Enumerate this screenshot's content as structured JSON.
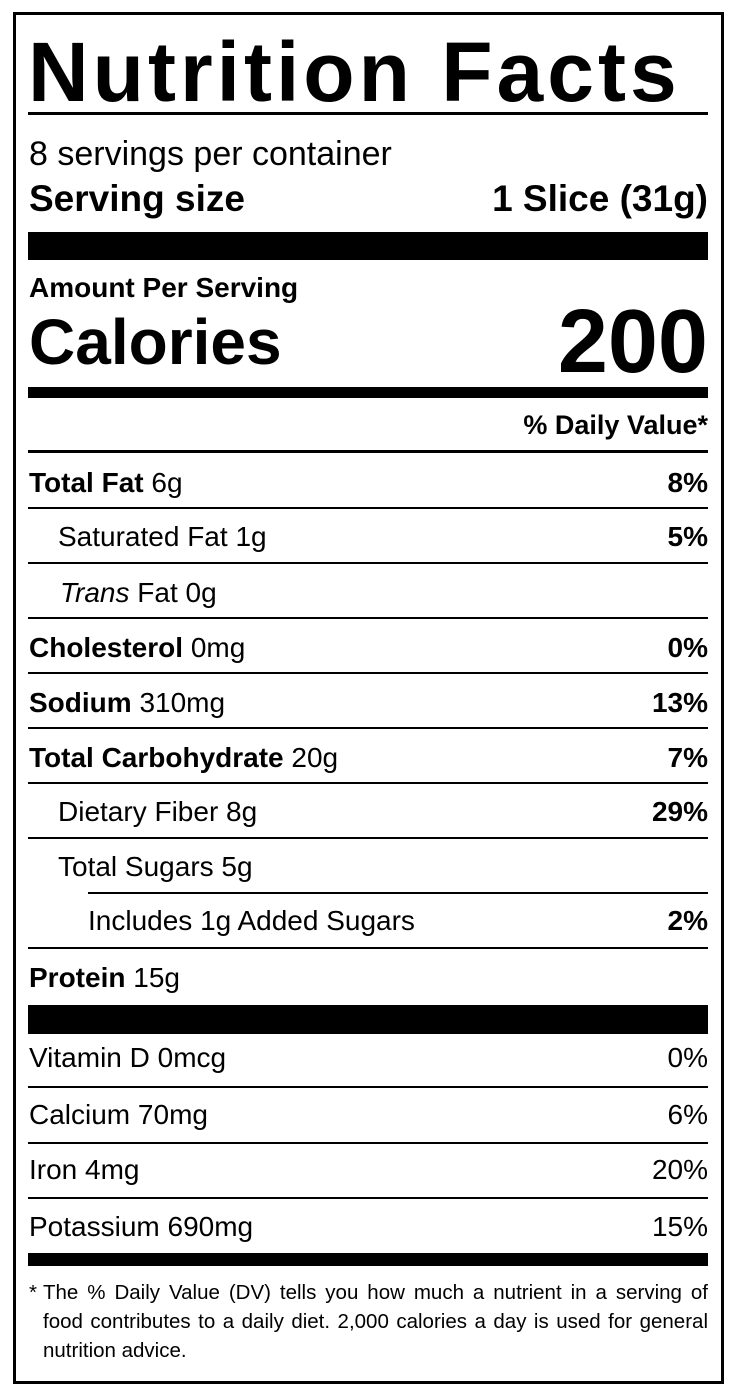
{
  "title": "Nutrition Facts",
  "servings_per_container": "8 servings per container",
  "serving_size": {
    "label": "Serving size",
    "value": "1 Slice (31g)"
  },
  "amount_per_serving": "Amount Per Serving",
  "calories": {
    "label": "Calories",
    "value": "200"
  },
  "daily_value_header": "% Daily Value*",
  "nutrients": [
    {
      "name": "Total Fat",
      "amount": "6g",
      "dv": "8%"
    },
    {
      "name": "Saturated Fat",
      "amount": "1g",
      "dv": "5%"
    },
    {
      "name_italic": "Trans",
      "name": "Fat",
      "amount": "0g",
      "dv": ""
    },
    {
      "name": "Cholesterol",
      "amount": "0mg",
      "dv": "0%"
    },
    {
      "name": "Sodium",
      "amount": "310mg",
      "dv": "13%"
    },
    {
      "name": "Total Carbohydrate",
      "amount": "20g",
      "dv": "7%"
    },
    {
      "name": "Dietary Fiber",
      "amount": "8g",
      "dv": "29%"
    },
    {
      "name": "Total Sugars",
      "amount": "5g",
      "dv": ""
    },
    {
      "name": "Includes 1g Added Sugars",
      "dv": "2%"
    },
    {
      "name": "Protein",
      "amount": "15g",
      "dv": ""
    }
  ],
  "vitamins": [
    {
      "name": "Vitamin D",
      "amount": "0mcg",
      "dv": "0%"
    },
    {
      "name": "Calcium",
      "amount": "70mg",
      "dv": "6%"
    },
    {
      "name": "Iron",
      "amount": "4mg",
      "dv": "20%"
    },
    {
      "name": "Potassium",
      "amount": "690mg",
      "dv": "15%"
    }
  ],
  "footnote": {
    "marker": "*",
    "text": "The % Daily Value (DV) tells you how much a nutrient in a serving of food contributes to a daily diet. 2,000 calories a day is used for general nutrition advice."
  }
}
